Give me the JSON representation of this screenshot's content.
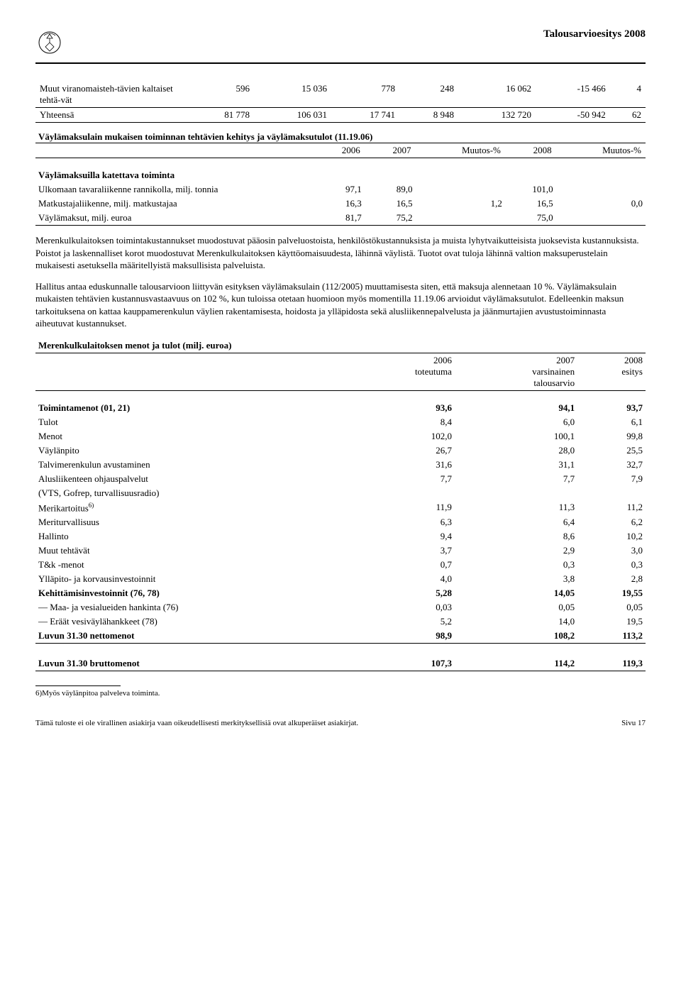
{
  "header": {
    "title": "Talousarvioesitys 2008"
  },
  "table1": {
    "rows": [
      {
        "label": "Muut viranomaisteh-tävien kaltaiset tehtä-vät",
        "c": [
          "596",
          "15 036",
          "778",
          "248",
          "16 062",
          "-15 466",
          "4"
        ],
        "bold": false
      },
      {
        "label": "Yhteensä",
        "c": [
          "81 778",
          "106 031",
          "17 741",
          "8 948",
          "132 720",
          "-50 942",
          "62"
        ],
        "bold": false
      }
    ]
  },
  "table2": {
    "title": "Väylämaksulain mukaisen toiminnan tehtävien kehitys ja väylämaksutulot (11.19.06)",
    "head": [
      "2006",
      "2007",
      "Muutos-%",
      "2008",
      "Muutos-%"
    ],
    "section_label": "Väylämaksuilla katettava toiminta",
    "rows": [
      {
        "label": "Ulkomaan tavaraliikenne rannikolla, milj. tonnia",
        "c": [
          "97,1",
          "89,0",
          "",
          "101,0",
          ""
        ]
      },
      {
        "label": "Matkustajaliikenne, milj. matkustajaa",
        "c": [
          "16,3",
          "16,5",
          "1,2",
          "16,5",
          "0,0"
        ]
      },
      {
        "label": "Väylämaksut, milj. euroa",
        "c": [
          "81,7",
          "75,2",
          "",
          "75,0",
          ""
        ]
      }
    ]
  },
  "para1": "Merenkulkulaitoksen toimintakustannukset muodostuvat pääosin palveluostoista, henkilöstökustannuksista ja muista lyhytvaikutteisista juoksevista kustannuksista. Poistot ja laskennalliset korot muodostuvat Merenkulkulaitoksen käyttöomaisuudesta, lähinnä väylistä. Tuotot ovat tuloja lähinnä valtion maksuperustelain mukaisesti asetuksella määritellyistä maksullisista palveluista.",
  "para2": "Hallitus antaa eduskunnalle talousarvioon liittyvän esityksen väylämaksulain (112/2005) muuttamisesta siten, että maksuja alennetaan 10 %. Väylämaksulain mukaisten tehtävien kustannusvastaavuus on 102 %, kun tuloissa otetaan huomioon myös momentilla 11.19.06 arvioidut väylämaksutulot. Edelleenkin maksun tarkoituksena on kattaa kauppamerenkulun väylien rakentamisesta, hoidosta ja ylläpidosta sekä alusliikennepalvelusta ja jäänmurtajien avustustoiminnasta aiheutuvat kustannukset.",
  "table3": {
    "title": "Merenkulkulaitoksen menot ja tulot (milj. euroa)",
    "head": [
      {
        "l1": "2006",
        "l2": "toteutuma"
      },
      {
        "l1": "2007",
        "l2": "varsinainen",
        "l3": "talousarvio"
      },
      {
        "l1": "2008",
        "l2": "esitys"
      }
    ],
    "rows": [
      {
        "label": "Toimintamenot (01, 21)",
        "c": [
          "93,6",
          "94,1",
          "93,7"
        ],
        "bold": true
      },
      {
        "label": "Tulot",
        "c": [
          "8,4",
          "6,0",
          "6,1"
        ]
      },
      {
        "label": "Menot",
        "c": [
          "102,0",
          "100,1",
          "99,8"
        ]
      },
      {
        "label": "Väylänpito",
        "c": [
          "26,7",
          "28,0",
          "25,5"
        ]
      },
      {
        "label": "Talvimerenkulun avustaminen",
        "c": [
          "31,6",
          "31,1",
          "32,7"
        ]
      },
      {
        "label": "Alusliikenteen ohjauspalvelut",
        "c": [
          "7,7",
          "7,7",
          "7,9"
        ]
      },
      {
        "label": "(VTS, Gofrep, turvallisuusradio)",
        "c": [
          "",
          "",
          ""
        ]
      },
      {
        "label": "Merikartoitus",
        "sup": "6)",
        "c": [
          "11,9",
          "11,3",
          "11,2"
        ]
      },
      {
        "label": "Meriturvallisuus",
        "c": [
          "6,3",
          "6,4",
          "6,2"
        ]
      },
      {
        "label": "Hallinto",
        "c": [
          "9,4",
          "8,6",
          "10,2"
        ]
      },
      {
        "label": "Muut tehtävät",
        "c": [
          "3,7",
          "2,9",
          "3,0"
        ]
      },
      {
        "label": "T&k -menot",
        "c": [
          "0,7",
          "0,3",
          "0,3"
        ]
      },
      {
        "label": "Ylläpito- ja korvausinvestoinnit",
        "c": [
          "4,0",
          "3,8",
          "2,8"
        ]
      },
      {
        "label": "Kehittämisinvestoinnit (76, 78)",
        "c": [
          "5,28",
          "14,05",
          "19,55"
        ],
        "bold": true
      },
      {
        "label": "— Maa- ja vesialueiden hankinta (76)",
        "c": [
          "0,03",
          "0,05",
          "0,05"
        ]
      },
      {
        "label": "— Eräät vesiväylähankkeet (78)",
        "c": [
          "5,2",
          "14,0",
          "19,5"
        ]
      },
      {
        "label": "Luvun 31.30 nettomenot",
        "c": [
          "98,9",
          "108,2",
          "113,2"
        ],
        "bold": true,
        "rule_after": true
      },
      {
        "label": "Luvun 31.30 bruttomenot",
        "c": [
          "107,3",
          "114,2",
          "119,3"
        ],
        "bold": true,
        "space_before": true,
        "rule_after": true
      }
    ]
  },
  "footnote": "6)Myös väylänpitoa palveleva toiminta.",
  "footer": {
    "left": "Tämä tuloste ei ole virallinen asiakirja vaan oikeudellisesti merkityksellisiä ovat alkuperäiset asiakirjat.",
    "right": "Sivu 17"
  }
}
